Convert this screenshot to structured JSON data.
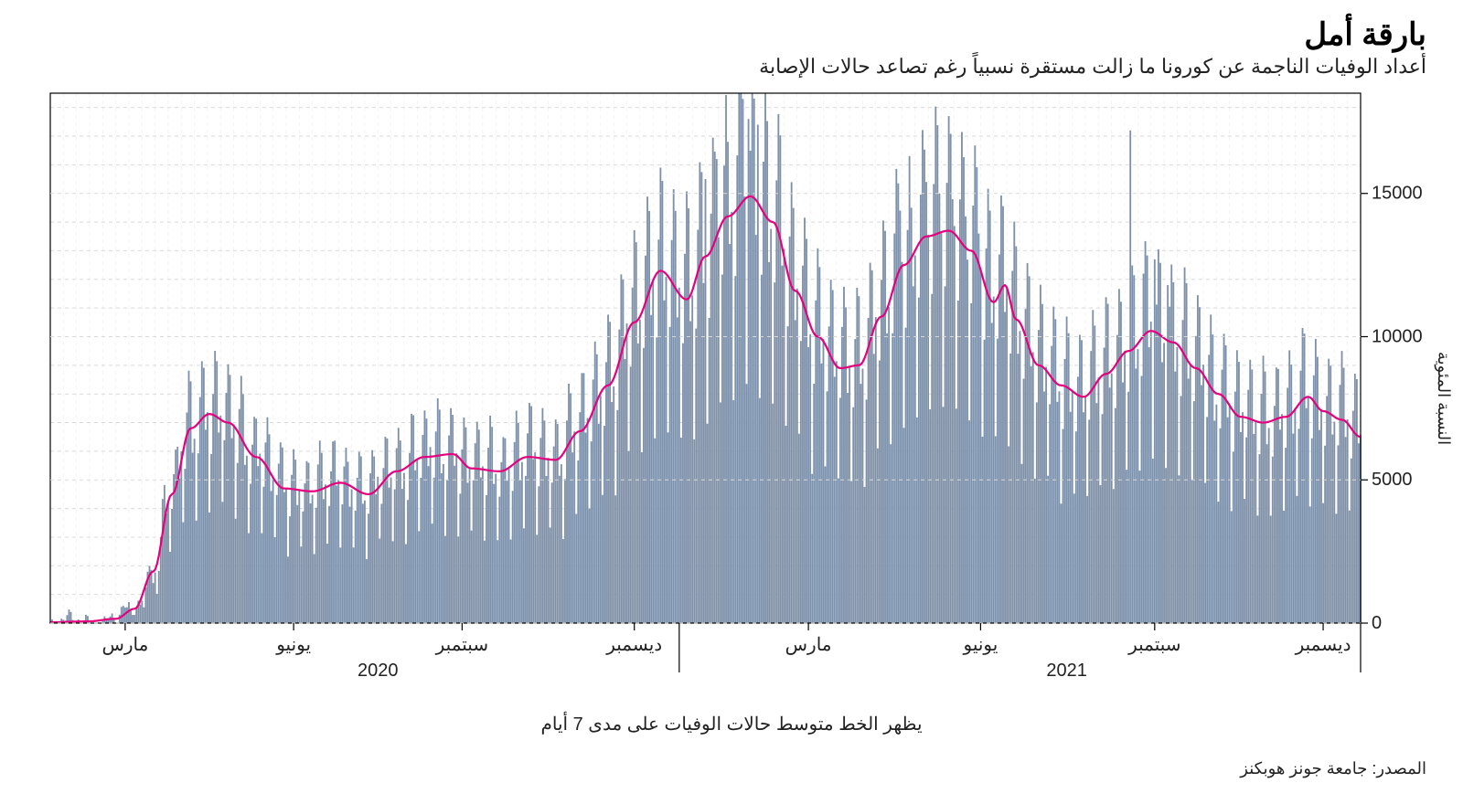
{
  "title": "بارقة أمل",
  "subtitle": "أعداد الوفيات الناجمة عن كورونا ما زالت مستقرة نسبياً رغم تصاعد حالات الإصابة",
  "caption": "يظهر الخط متوسط حالات الوفيات على مدى 7 أيام",
  "source": "المصدر: جامعة جونز هوبكنز",
  "chart": {
    "type": "bar+line",
    "ylabel": "النسبة المئوية",
    "ylim": [
      0,
      18500
    ],
    "yticks": [
      0,
      5000,
      10000,
      15000
    ],
    "ytick_labels": [
      "0",
      "5000",
      "10000",
      "15000"
    ],
    "xrange_days": 700,
    "background_color": "#ffffff",
    "plot_border_color": "#000000",
    "grid_color": "#d9d9d9",
    "bar_color": "#7e91ab",
    "line_color": "#e5007e",
    "line_width": 2.2,
    "axis_tick_color": "#000000",
    "label_color": "#222222",
    "label_fontsize": 20,
    "month_ticks": [
      {
        "day": 40,
        "label": "مارس"
      },
      {
        "day": 130,
        "label": "يونيو"
      },
      {
        "day": 220,
        "label": "سبتمبر"
      },
      {
        "day": 312,
        "label": "ديسمبر"
      },
      {
        "day": 405,
        "label": "مارس"
      },
      {
        "day": 497,
        "label": "يونيو"
      },
      {
        "day": 590,
        "label": "سبتمبر"
      },
      {
        "day": 680,
        "label": "ديسمبر"
      }
    ],
    "year_ticks": [
      {
        "day": 175,
        "label": "2020"
      },
      {
        "day": 543,
        "label": "2021"
      }
    ],
    "year_separators": [
      336,
      700
    ],
    "anchors": [
      {
        "day": 0,
        "avg": 30
      },
      {
        "day": 20,
        "avg": 60
      },
      {
        "day": 35,
        "avg": 150
      },
      {
        "day": 45,
        "avg": 500
      },
      {
        "day": 55,
        "avg": 1800
      },
      {
        "day": 65,
        "avg": 4500
      },
      {
        "day": 75,
        "avg": 6800
      },
      {
        "day": 85,
        "avg": 7300
      },
      {
        "day": 95,
        "avg": 7000
      },
      {
        "day": 110,
        "avg": 5800
      },
      {
        "day": 125,
        "avg": 4700
      },
      {
        "day": 140,
        "avg": 4600
      },
      {
        "day": 155,
        "avg": 4900
      },
      {
        "day": 170,
        "avg": 4500
      },
      {
        "day": 185,
        "avg": 5300
      },
      {
        "day": 200,
        "avg": 5800
      },
      {
        "day": 215,
        "avg": 5900
      },
      {
        "day": 225,
        "avg": 5400
      },
      {
        "day": 240,
        "avg": 5300
      },
      {
        "day": 255,
        "avg": 5800
      },
      {
        "day": 270,
        "avg": 5700
      },
      {
        "day": 283,
        "avg": 6700
      },
      {
        "day": 298,
        "avg": 8300
      },
      {
        "day": 312,
        "avg": 10500
      },
      {
        "day": 326,
        "avg": 12300
      },
      {
        "day": 340,
        "avg": 11300
      },
      {
        "day": 350,
        "avg": 12800
      },
      {
        "day": 362,
        "avg": 14200
      },
      {
        "day": 374,
        "avg": 14900
      },
      {
        "day": 386,
        "avg": 14000
      },
      {
        "day": 398,
        "avg": 11600
      },
      {
        "day": 410,
        "avg": 10000
      },
      {
        "day": 422,
        "avg": 8900
      },
      {
        "day": 432,
        "avg": 9000
      },
      {
        "day": 444,
        "avg": 10700
      },
      {
        "day": 456,
        "avg": 12500
      },
      {
        "day": 468,
        "avg": 13500
      },
      {
        "day": 480,
        "avg": 13700
      },
      {
        "day": 492,
        "avg": 13000
      },
      {
        "day": 504,
        "avg": 11200
      },
      {
        "day": 510,
        "avg": 11800
      },
      {
        "day": 516,
        "avg": 10600
      },
      {
        "day": 528,
        "avg": 9000
      },
      {
        "day": 540,
        "avg": 8300
      },
      {
        "day": 552,
        "avg": 7900
      },
      {
        "day": 564,
        "avg": 8700
      },
      {
        "day": 576,
        "avg": 9500
      },
      {
        "day": 588,
        "avg": 10200
      },
      {
        "day": 600,
        "avg": 9800
      },
      {
        "day": 612,
        "avg": 8900
      },
      {
        "day": 624,
        "avg": 8000
      },
      {
        "day": 636,
        "avg": 7200
      },
      {
        "day": 648,
        "avg": 7000
      },
      {
        "day": 660,
        "avg": 7200
      },
      {
        "day": 672,
        "avg": 7900
      },
      {
        "day": 680,
        "avg": 7400
      },
      {
        "day": 690,
        "avg": 7100
      },
      {
        "day": 700,
        "avg": 6500
      }
    ],
    "spike_days": {
      "370": 18300,
      "373": 17600,
      "378": 17400,
      "362": 16800,
      "356": 16200,
      "350": 15500,
      "468": 15400,
      "475": 15000,
      "482": 14800,
      "460": 14500,
      "577": 17200,
      "489": 14200,
      "454": 14400,
      "496": 13600,
      "590": 12700,
      "584": 12200,
      "597": 11800
    },
    "weekly_pattern": [
      1.0,
      0.55,
      0.85,
      1.12,
      1.3,
      1.25,
      0.92
    ],
    "noise_amp": 450
  }
}
